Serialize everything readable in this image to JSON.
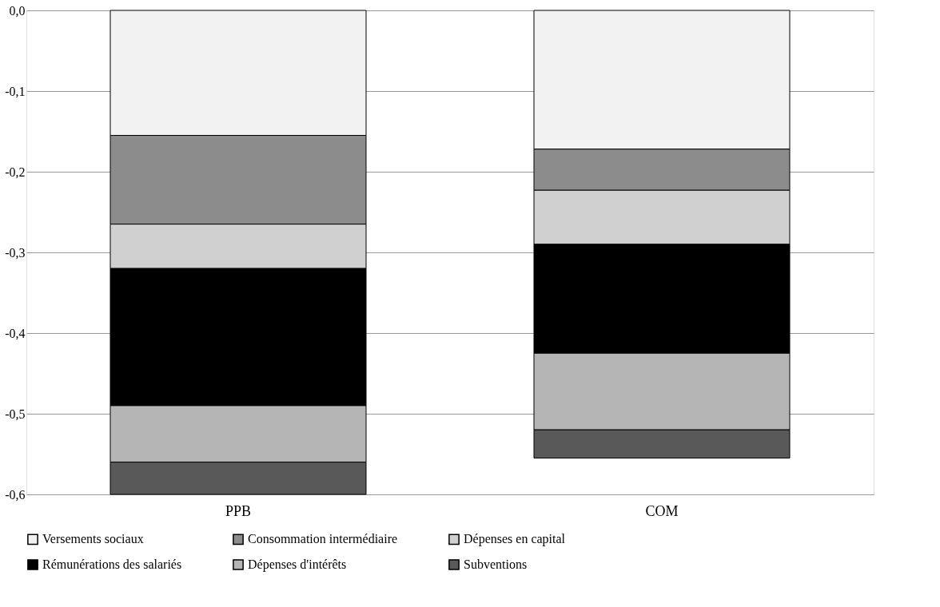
{
  "chart_data": {
    "type": "bar",
    "stacked": true,
    "categories": [
      "PPB",
      "COM"
    ],
    "series": [
      {
        "name": "Versements sociaux",
        "color": "#f2f2f2",
        "values": [
          -0.155,
          -0.172
        ]
      },
      {
        "name": "Consommation intermédiaire",
        "color": "#8c8c8c",
        "values": [
          -0.11,
          -0.051
        ]
      },
      {
        "name": "Dépenses en capital",
        "color": "#d0d0d0",
        "values": [
          -0.055,
          -0.067
        ]
      },
      {
        "name": "Rémunérations des salariés",
        "color": "#000000",
        "values": [
          -0.17,
          -0.135
        ]
      },
      {
        "name": "Dépenses d'intérêts",
        "color": "#b5b5b5",
        "values": [
          -0.07,
          -0.095
        ]
      },
      {
        "name": "Subventions",
        "color": "#595959",
        "values": [
          -0.04,
          -0.035
        ]
      }
    ],
    "ylim": [
      -0.6,
      0
    ],
    "yticks": [
      {
        "value": -0.6,
        "label": "-0,6"
      },
      {
        "value": -0.5,
        "label": "-0,5"
      },
      {
        "value": -0.4,
        "label": "-0,4"
      },
      {
        "value": -0.3,
        "label": "-0,3"
      },
      {
        "value": -0.2,
        "label": "-0,2"
      },
      {
        "value": -0.1,
        "label": "-0,1"
      },
      {
        "value": 0,
        "label": "0,0"
      }
    ],
    "grid": "y",
    "legend": "bottom"
  }
}
